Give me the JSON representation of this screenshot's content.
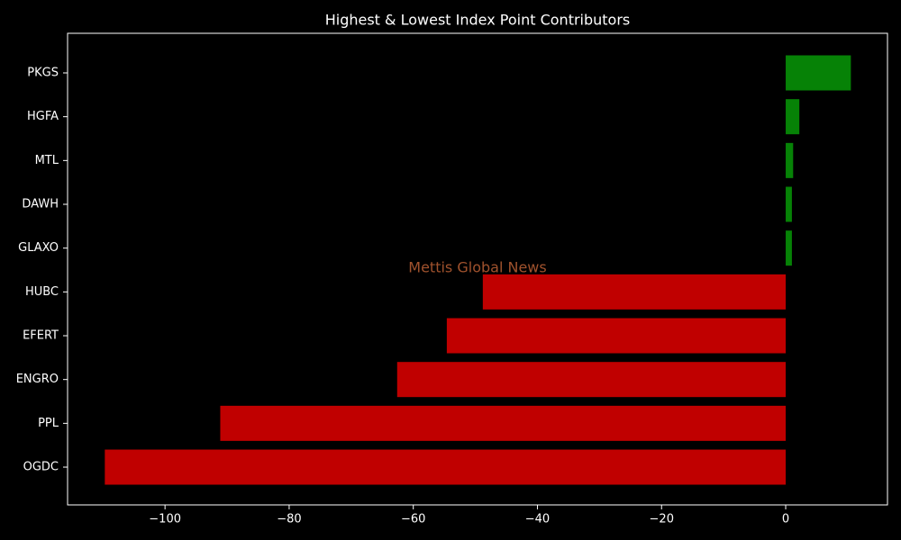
{
  "chart_data": {
    "type": "hbar",
    "title": "Highest & Lowest Index Point Contributors",
    "annotation": "Mettis Global News",
    "categories": [
      "PKGS",
      "HGFA",
      "MTL",
      "DAWH",
      "GLAXO",
      "HUBC",
      "EFERT",
      "ENGRO",
      "PPL",
      "OGDC"
    ],
    "values": [
      10.5,
      2.2,
      1.2,
      1.0,
      1.0,
      -48.8,
      -54.6,
      -62.6,
      -91.1,
      -109.7
    ],
    "colors": [
      "#068206",
      "#068206",
      "#068206",
      "#068206",
      "#068206",
      "#c00000",
      "#c00000",
      "#c00000",
      "#c00000",
      "#c00000"
    ],
    "xlim": [
      -115.7,
      16.4
    ],
    "xticks": [
      {
        "value": -100,
        "label": "−100"
      },
      {
        "value": -80,
        "label": "−80"
      },
      {
        "value": -60,
        "label": "−60"
      },
      {
        "value": -40,
        "label": "−40"
      },
      {
        "value": -20,
        "label": "−20"
      },
      0
    ],
    "grid": false
  }
}
